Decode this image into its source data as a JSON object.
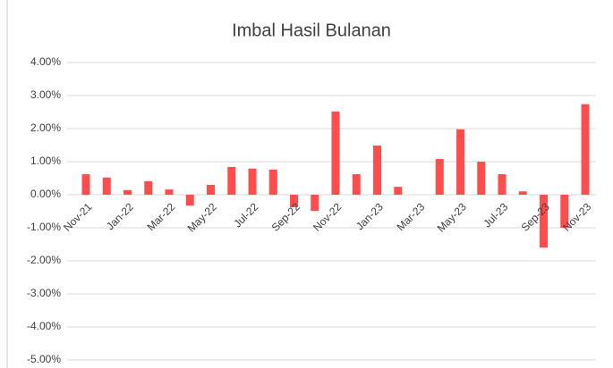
{
  "chart_data": {
    "type": "bar",
    "title": "Imbal Hasil Bulanan",
    "categories": [
      "Nov-21",
      null,
      "Jan-22",
      null,
      "Mar-22",
      null,
      "May-22",
      null,
      "Jul-22",
      null,
      "Sep-22",
      null,
      "Nov-22",
      null,
      "Jan-23",
      null,
      "Mar-23",
      null,
      "May-23",
      null,
      "Jul-23",
      null,
      "Sep-23",
      null,
      "Nov-23"
    ],
    "values": [
      0.62,
      0.52,
      0.14,
      0.41,
      0.16,
      -0.33,
      0.3,
      0.84,
      0.79,
      0.76,
      -0.38,
      -0.49,
      2.52,
      0.62,
      1.49,
      0.24,
      0,
      1.08,
      1.98,
      1.0,
      0.62,
      0.1,
      -1.6,
      -1.0,
      2.74
    ],
    "color": "#ff4d4d",
    "ylim": [
      -5,
      4
    ],
    "yticks": [
      {
        "value": -5,
        "label": "-5.00%"
      },
      {
        "value": -4,
        "label": "-4.00%"
      },
      {
        "value": -3,
        "label": "-3.00%"
      },
      {
        "value": -2,
        "label": "-2.00%"
      },
      {
        "value": -1,
        "label": "-1.00%"
      },
      {
        "value": 0,
        "label": "0.00%"
      },
      {
        "value": 1,
        "label": "1.00%"
      },
      {
        "value": 2,
        "label": "2.00%"
      },
      {
        "value": 3,
        "label": "3.00%"
      },
      {
        "value": 4,
        "label": "4.00%"
      }
    ],
    "grid": true
  }
}
